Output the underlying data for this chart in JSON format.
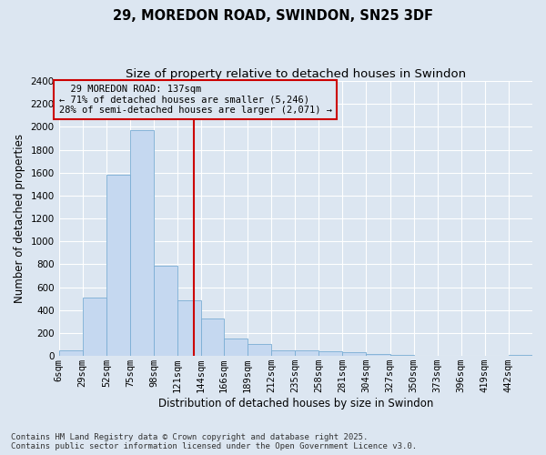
{
  "title_line1": "29, MOREDON ROAD, SWINDON, SN25 3DF",
  "title_line2": "Size of property relative to detached houses in Swindon",
  "xlabel": "Distribution of detached houses by size in Swindon",
  "ylabel": "Number of detached properties",
  "annotation_line1": "  29 MOREDON ROAD: 137sqm  ",
  "annotation_line2": "← 71% of detached houses are smaller (5,246)",
  "annotation_line3": "28% of semi-detached houses are larger (2,071) →",
  "property_size": 137,
  "bin_edges": [
    6,
    29,
    52,
    75,
    98,
    121,
    144,
    166,
    189,
    212,
    235,
    258,
    281,
    304,
    327,
    350,
    373,
    396,
    419,
    442,
    465
  ],
  "bar_heights": [
    50,
    510,
    1580,
    1970,
    790,
    490,
    330,
    155,
    105,
    50,
    50,
    38,
    30,
    18,
    8,
    5,
    4,
    2,
    0,
    8
  ],
  "bar_color": "#c5d8f0",
  "bar_edge_color": "#7aadd4",
  "vline_color": "#cc0000",
  "vline_x": 137,
  "annotation_box_color": "#cc0000",
  "background_color": "#dce6f1",
  "grid_color": "#ffffff",
  "ylim": [
    0,
    2400
  ],
  "yticks": [
    0,
    200,
    400,
    600,
    800,
    1000,
    1200,
    1400,
    1600,
    1800,
    2000,
    2200,
    2400
  ],
  "footnote": "Contains HM Land Registry data © Crown copyright and database right 2025.\nContains public sector information licensed under the Open Government Licence v3.0.",
  "title_fontsize": 10.5,
  "subtitle_fontsize": 9.5,
  "axis_label_fontsize": 8.5,
  "tick_fontsize": 7.5,
  "annotation_fontsize": 7.5,
  "footnote_fontsize": 6.5
}
